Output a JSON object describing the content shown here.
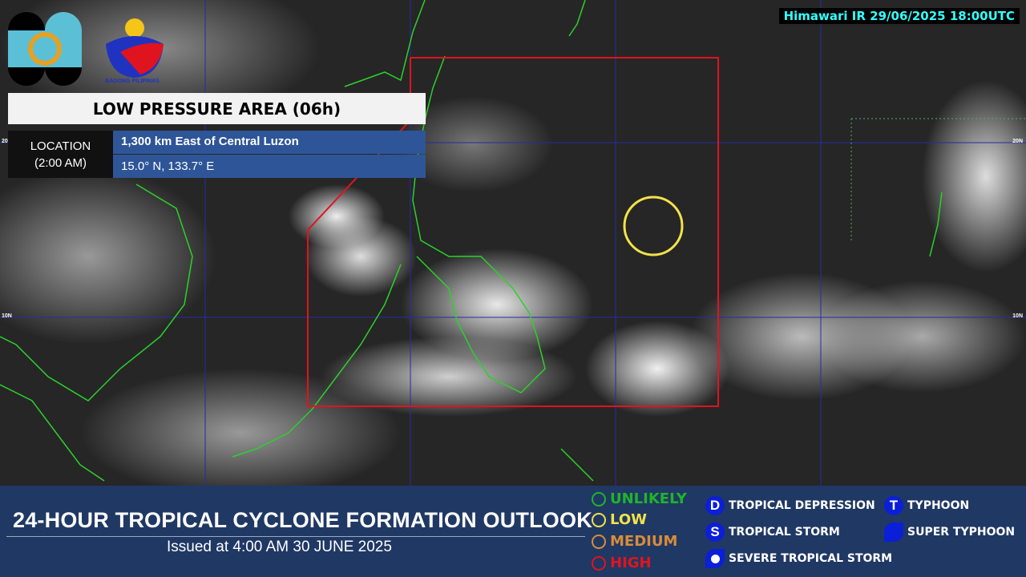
{
  "satellite": {
    "label": "Himawari IR 29/06/2025 18:00UTC",
    "lat_labels": [
      "20N",
      "10N"
    ]
  },
  "logos": {
    "pagasa": "PAGASA 1865",
    "bagong": "BAGONG PILIPINAS"
  },
  "system": {
    "title": "LOW PRESSURE AREA (06h)",
    "location_label": "LOCATION",
    "location_time": "(2:00 AM)",
    "location_desc": "1,300 km East of Central Luzon",
    "coordinates": "15.0° N, 133.7° E",
    "likelihood_color": "#f2e24a"
  },
  "footer": {
    "title": "24-HOUR TROPICAL CYCLONE FORMATION OUTLOOK",
    "issued": "Issued at  4:00 AM  30 JUNE 2025",
    "likelihood": [
      {
        "label": "UNLIKELY",
        "color": "#1fb52a"
      },
      {
        "label": "LOW",
        "color": "#f2e24a"
      },
      {
        "label": "MEDIUM",
        "color": "#d98c3a"
      },
      {
        "label": "HIGH",
        "color": "#e0141e"
      }
    ],
    "categories": [
      {
        "symbol": "D",
        "label": "TROPICAL DEPRESSION"
      },
      {
        "symbol": "S",
        "label": "TROPICAL STORM"
      },
      {
        "symbol": "",
        "label": "SEVERE TROPICAL STORM"
      },
      {
        "symbol": "T",
        "label": "TYPHOON"
      },
      {
        "symbol": "",
        "label": "SUPER TYPHOON"
      }
    ]
  }
}
